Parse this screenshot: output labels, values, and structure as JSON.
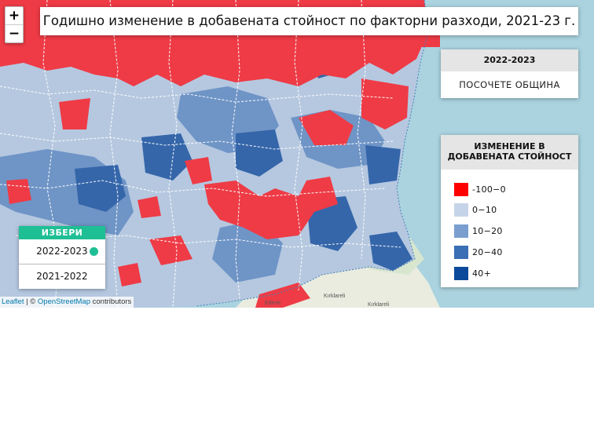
{
  "map": {
    "title": "Годишно изменение в добавената стойност по факторни разходи, 2021-23 г.",
    "zoom": {
      "in_label": "+",
      "out_label": "−"
    },
    "place_labels": [
      "Edirne",
      "Kırklareli",
      "Kırklareli"
    ]
  },
  "info_panel": {
    "year": "2022-2023",
    "prompt": "ПОСОЧЕТЕ ОБЩИНА"
  },
  "legend": {
    "title_line1": "ИЗМЕНЕНИЕ В",
    "title_line2": "ДОБАВЕНАТА СТОЙНОСТ",
    "items": [
      {
        "label": "-100−0",
        "color": "#ff0000"
      },
      {
        "label": "0−10",
        "color": "#c6d4e9"
      },
      {
        "label": "10−20",
        "color": "#7a9fcf"
      },
      {
        "label": "20−40",
        "color": "#3a6fb5"
      },
      {
        "label": "40+",
        "color": "#0b4a9a"
      }
    ]
  },
  "selector": {
    "title": "ИЗБЕРИ",
    "options": [
      {
        "label": "2022-2023",
        "selected": true
      },
      {
        "label": "2021-2022",
        "selected": false
      }
    ]
  },
  "attribution": {
    "leaflet": "Leaflet",
    "separator": " | © ",
    "osm": "OpenStreetMap",
    "suffix": " contributors"
  },
  "colors": {
    "sea": "#aad3df",
    "land_outside": "#f2efe9",
    "red": "#ee3b46",
    "light": "#b5c8e0",
    "mid": "#6f94c6",
    "dark": "#3566aa",
    "accent": "#1fbf95"
  }
}
